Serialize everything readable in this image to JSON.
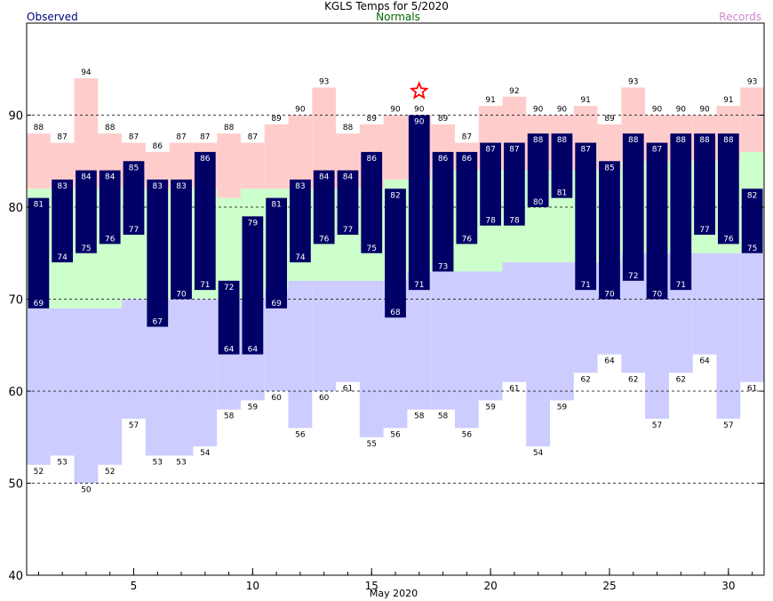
{
  "chart_data": {
    "type": "bar",
    "title": "KGLS Temps for 5/2020",
    "xlabel": "May 2020",
    "ylabel": "",
    "ylim": [
      40,
      100
    ],
    "y_ticks": [
      40,
      50,
      60,
      70,
      80,
      90
    ],
    "x_ticks": [
      5,
      10,
      15,
      20,
      25,
      30
    ],
    "gridlines": [
      50,
      60,
      70,
      80,
      90
    ],
    "grid": "dashed horizontal",
    "legend": "top, as colored text labels: left / center / right",
    "legend_labels": {
      "observed": "Observed",
      "normals": "Normals",
      "records": "Records"
    },
    "days": [
      1,
      2,
      3,
      4,
      5,
      6,
      7,
      8,
      9,
      10,
      11,
      12,
      13,
      14,
      15,
      16,
      17,
      18,
      19,
      20,
      21,
      22,
      23,
      24,
      25,
      26,
      27,
      28,
      29,
      30,
      31
    ],
    "series": [
      {
        "name": "Observed",
        "kind": "high",
        "values": [
          81,
          83,
          84,
          84,
          85,
          83,
          83,
          86,
          72,
          79,
          81,
          83,
          84,
          84,
          86,
          82,
          90,
          86,
          86,
          87,
          87,
          88,
          88,
          87,
          85,
          88,
          87,
          88,
          88,
          88,
          82
        ]
      },
      {
        "name": "Observed",
        "kind": "low",
        "values": [
          69,
          74,
          75,
          76,
          77,
          67,
          70,
          71,
          64,
          64,
          69,
          74,
          76,
          77,
          75,
          68,
          71,
          73,
          76,
          78,
          78,
          80,
          81,
          71,
          70,
          72,
          70,
          71,
          77,
          76,
          75
        ]
      },
      {
        "name": "Records",
        "kind": "record_high",
        "values": [
          88,
          87,
          94,
          88,
          87,
          86,
          87,
          87,
          88,
          87,
          89,
          90,
          93,
          88,
          89,
          90,
          90,
          89,
          87,
          91,
          92,
          90,
          90,
          91,
          89,
          93,
          90,
          90,
          90,
          91,
          93
        ]
      },
      {
        "name": "Records",
        "kind": "record_low",
        "values": [
          52,
          53,
          50,
          52,
          57,
          53,
          53,
          54,
          58,
          59,
          60,
          56,
          60,
          61,
          55,
          56,
          58,
          58,
          56,
          59,
          61,
          54,
          59,
          62,
          64,
          62,
          57,
          62,
          64,
          57,
          61
        ]
      },
      {
        "name": "Normals",
        "kind": "normal_high",
        "values": [
          82,
          82,
          82,
          82,
          82,
          82,
          82,
          82,
          81,
          82,
          82,
          82,
          82,
          82,
          82,
          83,
          83,
          84,
          84,
          84,
          84,
          84,
          84,
          84,
          84,
          85,
          85,
          85,
          85,
          85,
          86
        ]
      },
      {
        "name": "Normals",
        "kind": "normal_low",
        "values": [
          69,
          69,
          69,
          69,
          70,
          70,
          70,
          70,
          70,
          70,
          71,
          72,
          72,
          72,
          72,
          72,
          73,
          73,
          73,
          73,
          74,
          74,
          74,
          74,
          74,
          75,
          75,
          75,
          75,
          75,
          75
        ]
      }
    ],
    "markers": [
      {
        "type": "record",
        "day": 17,
        "value": 90,
        "symbol": "star"
      }
    ],
    "colors": {
      "observed": "#000066",
      "observed_text": "#000080",
      "normal_band": "#ccffcc",
      "record_high_band": "#ffcccc",
      "record_low_band": "#ccccff",
      "normals_text": "#006600",
      "records_text": "#cc88cc",
      "record_marker": "#ff0000",
      "gridline": "#000000"
    }
  }
}
